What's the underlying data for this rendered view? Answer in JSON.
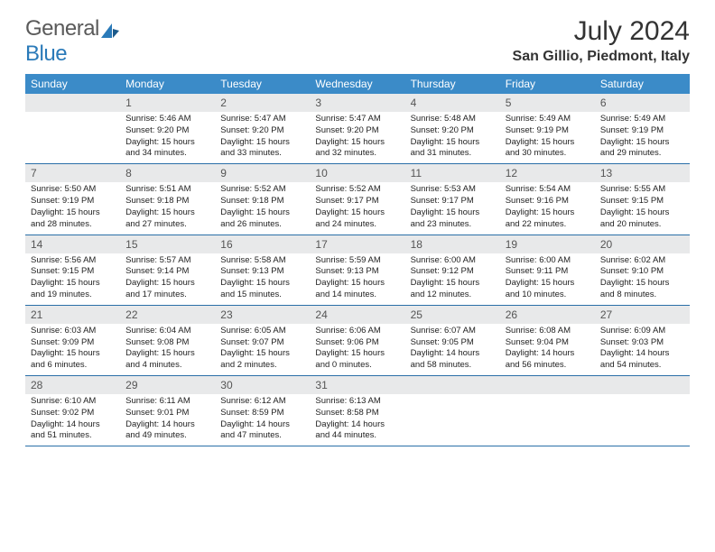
{
  "logo": {
    "word1": "General",
    "word2": "Blue"
  },
  "title": "July 2024",
  "location": "San Gillio, Piedmont, Italy",
  "colors": {
    "header_bg": "#3b8bc8",
    "header_text": "#ffffff",
    "daynum_bg": "#e8e9ea",
    "border": "#2a6fa8",
    "logo_gray": "#5a5a5a",
    "logo_blue": "#2a7ab9"
  },
  "weekdays": [
    "Sunday",
    "Monday",
    "Tuesday",
    "Wednesday",
    "Thursday",
    "Friday",
    "Saturday"
  ],
  "weeks": [
    [
      {
        "n": "",
        "lines": []
      },
      {
        "n": "1",
        "lines": [
          "Sunrise: 5:46 AM",
          "Sunset: 9:20 PM",
          "Daylight: 15 hours and 34 minutes."
        ]
      },
      {
        "n": "2",
        "lines": [
          "Sunrise: 5:47 AM",
          "Sunset: 9:20 PM",
          "Daylight: 15 hours and 33 minutes."
        ]
      },
      {
        "n": "3",
        "lines": [
          "Sunrise: 5:47 AM",
          "Sunset: 9:20 PM",
          "Daylight: 15 hours and 32 minutes."
        ]
      },
      {
        "n": "4",
        "lines": [
          "Sunrise: 5:48 AM",
          "Sunset: 9:20 PM",
          "Daylight: 15 hours and 31 minutes."
        ]
      },
      {
        "n": "5",
        "lines": [
          "Sunrise: 5:49 AM",
          "Sunset: 9:19 PM",
          "Daylight: 15 hours and 30 minutes."
        ]
      },
      {
        "n": "6",
        "lines": [
          "Sunrise: 5:49 AM",
          "Sunset: 9:19 PM",
          "Daylight: 15 hours and 29 minutes."
        ]
      }
    ],
    [
      {
        "n": "7",
        "lines": [
          "Sunrise: 5:50 AM",
          "Sunset: 9:19 PM",
          "Daylight: 15 hours and 28 minutes."
        ]
      },
      {
        "n": "8",
        "lines": [
          "Sunrise: 5:51 AM",
          "Sunset: 9:18 PM",
          "Daylight: 15 hours and 27 minutes."
        ]
      },
      {
        "n": "9",
        "lines": [
          "Sunrise: 5:52 AM",
          "Sunset: 9:18 PM",
          "Daylight: 15 hours and 26 minutes."
        ]
      },
      {
        "n": "10",
        "lines": [
          "Sunrise: 5:52 AM",
          "Sunset: 9:17 PM",
          "Daylight: 15 hours and 24 minutes."
        ]
      },
      {
        "n": "11",
        "lines": [
          "Sunrise: 5:53 AM",
          "Sunset: 9:17 PM",
          "Daylight: 15 hours and 23 minutes."
        ]
      },
      {
        "n": "12",
        "lines": [
          "Sunrise: 5:54 AM",
          "Sunset: 9:16 PM",
          "Daylight: 15 hours and 22 minutes."
        ]
      },
      {
        "n": "13",
        "lines": [
          "Sunrise: 5:55 AM",
          "Sunset: 9:15 PM",
          "Daylight: 15 hours and 20 minutes."
        ]
      }
    ],
    [
      {
        "n": "14",
        "lines": [
          "Sunrise: 5:56 AM",
          "Sunset: 9:15 PM",
          "Daylight: 15 hours and 19 minutes."
        ]
      },
      {
        "n": "15",
        "lines": [
          "Sunrise: 5:57 AM",
          "Sunset: 9:14 PM",
          "Daylight: 15 hours and 17 minutes."
        ]
      },
      {
        "n": "16",
        "lines": [
          "Sunrise: 5:58 AM",
          "Sunset: 9:13 PM",
          "Daylight: 15 hours and 15 minutes."
        ]
      },
      {
        "n": "17",
        "lines": [
          "Sunrise: 5:59 AM",
          "Sunset: 9:13 PM",
          "Daylight: 15 hours and 14 minutes."
        ]
      },
      {
        "n": "18",
        "lines": [
          "Sunrise: 6:00 AM",
          "Sunset: 9:12 PM",
          "Daylight: 15 hours and 12 minutes."
        ]
      },
      {
        "n": "19",
        "lines": [
          "Sunrise: 6:00 AM",
          "Sunset: 9:11 PM",
          "Daylight: 15 hours and 10 minutes."
        ]
      },
      {
        "n": "20",
        "lines": [
          "Sunrise: 6:02 AM",
          "Sunset: 9:10 PM",
          "Daylight: 15 hours and 8 minutes."
        ]
      }
    ],
    [
      {
        "n": "21",
        "lines": [
          "Sunrise: 6:03 AM",
          "Sunset: 9:09 PM",
          "Daylight: 15 hours and 6 minutes."
        ]
      },
      {
        "n": "22",
        "lines": [
          "Sunrise: 6:04 AM",
          "Sunset: 9:08 PM",
          "Daylight: 15 hours and 4 minutes."
        ]
      },
      {
        "n": "23",
        "lines": [
          "Sunrise: 6:05 AM",
          "Sunset: 9:07 PM",
          "Daylight: 15 hours and 2 minutes."
        ]
      },
      {
        "n": "24",
        "lines": [
          "Sunrise: 6:06 AM",
          "Sunset: 9:06 PM",
          "Daylight: 15 hours and 0 minutes."
        ]
      },
      {
        "n": "25",
        "lines": [
          "Sunrise: 6:07 AM",
          "Sunset: 9:05 PM",
          "Daylight: 14 hours and 58 minutes."
        ]
      },
      {
        "n": "26",
        "lines": [
          "Sunrise: 6:08 AM",
          "Sunset: 9:04 PM",
          "Daylight: 14 hours and 56 minutes."
        ]
      },
      {
        "n": "27",
        "lines": [
          "Sunrise: 6:09 AM",
          "Sunset: 9:03 PM",
          "Daylight: 14 hours and 54 minutes."
        ]
      }
    ],
    [
      {
        "n": "28",
        "lines": [
          "Sunrise: 6:10 AM",
          "Sunset: 9:02 PM",
          "Daylight: 14 hours and 51 minutes."
        ]
      },
      {
        "n": "29",
        "lines": [
          "Sunrise: 6:11 AM",
          "Sunset: 9:01 PM",
          "Daylight: 14 hours and 49 minutes."
        ]
      },
      {
        "n": "30",
        "lines": [
          "Sunrise: 6:12 AM",
          "Sunset: 8:59 PM",
          "Daylight: 14 hours and 47 minutes."
        ]
      },
      {
        "n": "31",
        "lines": [
          "Sunrise: 6:13 AM",
          "Sunset: 8:58 PM",
          "Daylight: 14 hours and 44 minutes."
        ]
      },
      {
        "n": "",
        "lines": []
      },
      {
        "n": "",
        "lines": []
      },
      {
        "n": "",
        "lines": []
      }
    ]
  ]
}
